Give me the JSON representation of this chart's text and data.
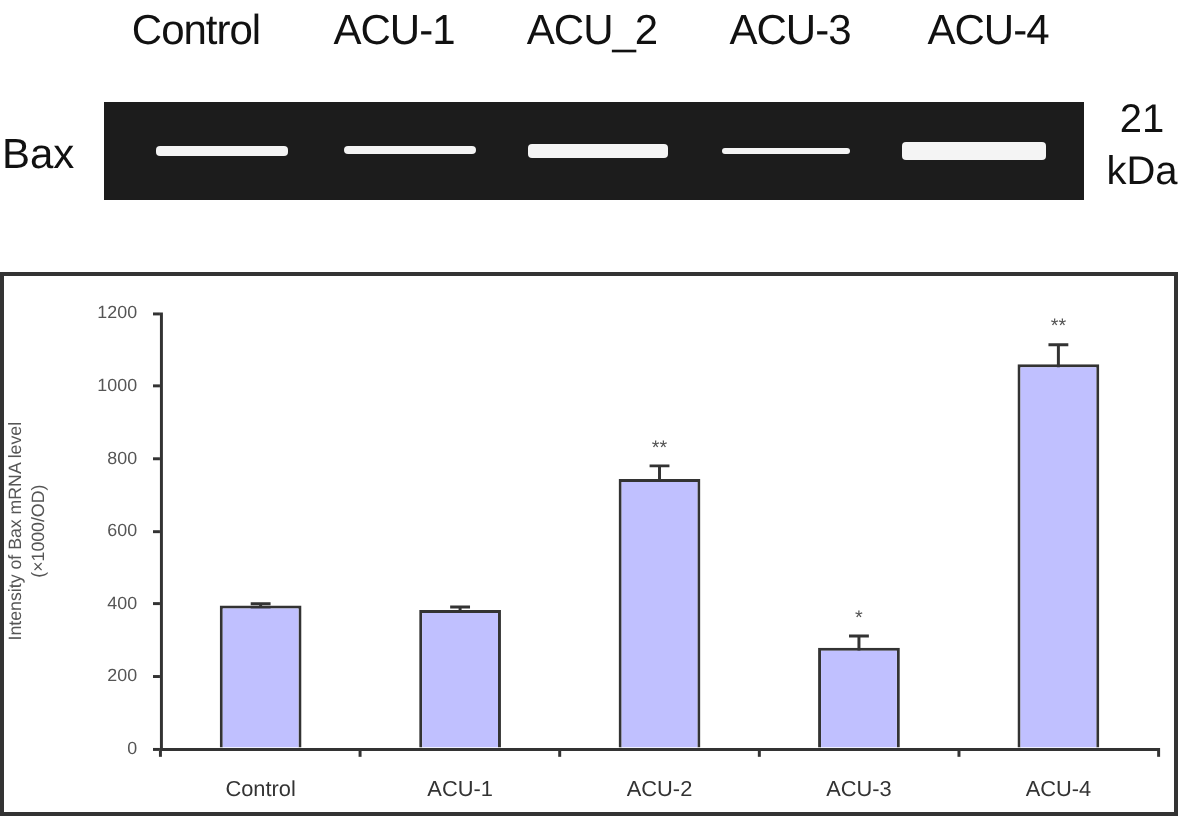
{
  "chart_data": {
    "type": "bar",
    "categories": [
      "Control",
      "ACU-1",
      "ACU-2",
      "ACU-3",
      "ACU-4"
    ],
    "values": [
      395,
      383,
      744,
      279,
      1060
    ],
    "errors": [
      5,
      8,
      36,
      32,
      54
    ],
    "value_labels": [
      null,
      null,
      "**",
      "*",
      "**"
    ],
    "color": "#c0c0ff",
    "ylabel": "Intensity of Bax mRNA level\n(×1000/OD)",
    "ylim": [
      0,
      1200
    ],
    "yticks": [
      0,
      200,
      400,
      600,
      800,
      1000,
      1200
    ],
    "grid": false,
    "legend": false,
    "annotations": [
      "Control",
      "ACU-1",
      "ACU_2",
      "ACU-3",
      "ACU-4",
      "Bax",
      "21 kDa"
    ]
  }
}
